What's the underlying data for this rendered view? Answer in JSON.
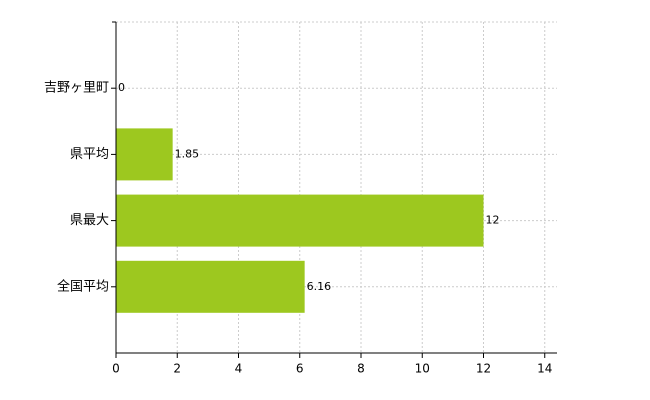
{
  "chart_data": {
    "type": "bar",
    "orientation": "horizontal",
    "categories": [
      "吉野ヶ里町",
      "県平均",
      "県最大",
      "全国平均"
    ],
    "values": [
      0,
      1.85,
      12,
      6.16
    ],
    "color": "#9dc81f",
    "xlim": [
      0,
      14.4
    ],
    "xticks": [
      0,
      2,
      4,
      6,
      8,
      10,
      12,
      14
    ],
    "grid": true
  }
}
